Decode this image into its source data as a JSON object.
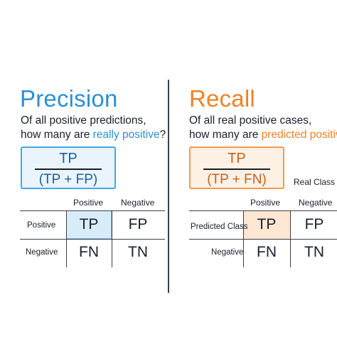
{
  "precision": {
    "title": "Precision",
    "sub_line1": "Of all positive predictions,",
    "sub_line2_prefix": "how many are ",
    "sub_line2_highlight": "really positive",
    "sub_line2_suffix": "?",
    "numerator": "TP",
    "denominator": "(TP + FP)",
    "matrix": {
      "col_headers": [
        "Positive",
        "Negative"
      ],
      "row_labels": [
        "Positive",
        "Negative"
      ],
      "cells": [
        [
          "TP",
          "FP"
        ],
        [
          "FN",
          "TN"
        ]
      ]
    }
  },
  "recall": {
    "title": "Recall",
    "sub_line1": "Of all real positive cases,",
    "sub_line2_prefix": "how many are ",
    "sub_line2_highlight": "predicted positive",
    "numerator": "TP",
    "denominator": "(TP + FN)",
    "real_class_label": "Real Class",
    "predicted_class_label": "Predicted Class",
    "matrix": {
      "col_headers": [
        "Positive",
        "Negative"
      ],
      "row_labels": [
        "Predicted Class",
        "Negative"
      ],
      "cells": [
        [
          "TP",
          "FP"
        ],
        [
          "FN",
          "TN"
        ]
      ]
    }
  },
  "colors": {
    "precision_accent": "#2b8fd6",
    "recall_accent": "#ee8228"
  }
}
